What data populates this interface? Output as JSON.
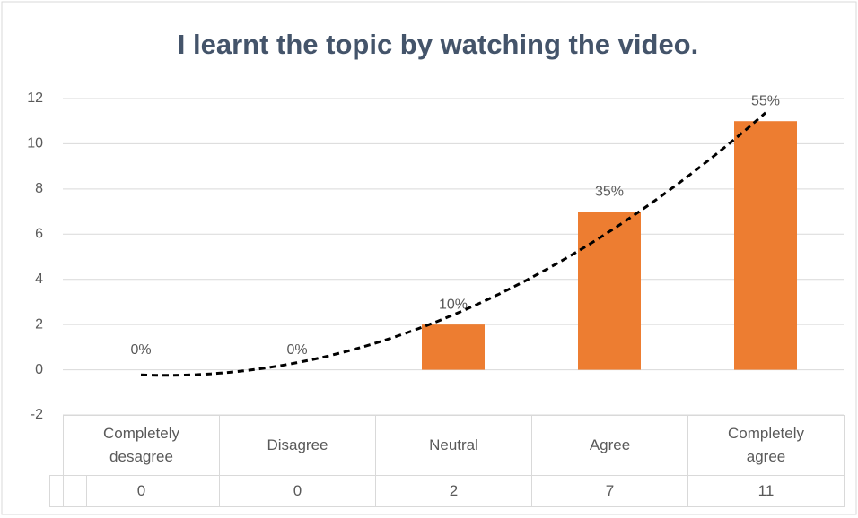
{
  "chart_data": {
    "type": "bar",
    "title": "I learnt the topic by watching the video.",
    "categories": [
      "Completely desagree",
      "Disagree",
      "Neutral",
      "Agree",
      "Completely agree"
    ],
    "values": [
      0,
      0,
      2,
      7,
      11
    ],
    "value_labels": [
      "0%",
      "0%",
      "10%",
      "35%",
      "55%"
    ],
    "color": "#ed7d31",
    "ylim": [
      -2,
      12
    ],
    "yticks": [
      -2,
      0,
      2,
      4,
      6,
      8,
      10,
      12
    ],
    "grid": true,
    "trendline": {
      "order": 2,
      "color": "#000000"
    },
    "data_table": true
  }
}
